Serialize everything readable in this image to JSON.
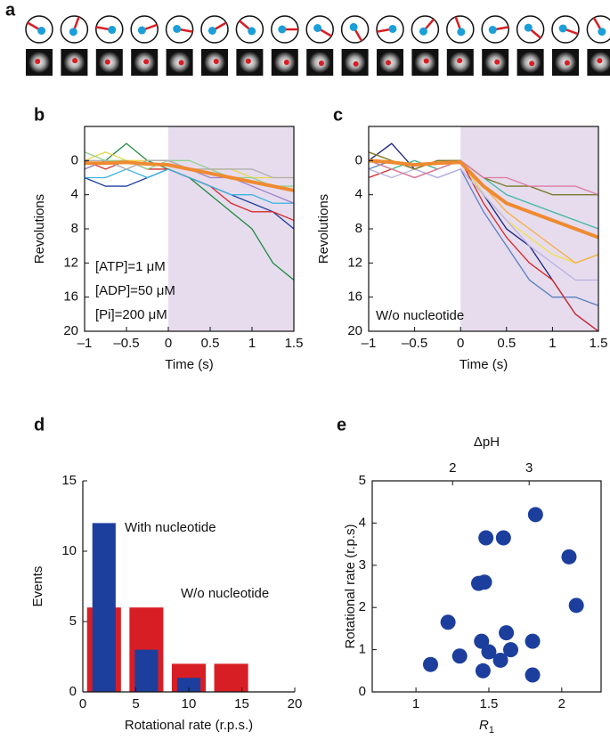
{
  "panel_labels": [
    "a",
    "b",
    "c",
    "d",
    "e"
  ],
  "chart_data": [
    {
      "type": "line",
      "xlabel": "Time (s)",
      "ylabel": "Revolutions",
      "x": [
        -1,
        -0.75,
        -0.5,
        -0.25,
        0,
        0.25,
        0.5,
        0.75,
        1,
        1.25,
        1.5
      ],
      "xlim": [
        -1,
        1.5
      ],
      "ylim": [
        -4,
        20
      ],
      "y_inverted": true,
      "xticks": [
        {
          "value": -1,
          "label": "–1"
        },
        {
          "value": -0.5,
          "label": "–0.5"
        },
        0,
        0.5,
        1,
        1.5
      ],
      "yticks": [
        0,
        4,
        8,
        12,
        16,
        20
      ],
      "shade": [
        0,
        1.5
      ],
      "shade_color": "#e6dcee",
      "annotations": [
        "[ATP]=1 μM",
        "[ADP]=50 μM",
        "[Pi]=200 μM"
      ],
      "series": [
        {
          "color": "#1f3f9f",
          "values": [
            2,
            3,
            3,
            2,
            1,
            2,
            3,
            4,
            5,
            6,
            8
          ]
        },
        {
          "color": "#1e8a3c",
          "values": [
            1,
            0,
            -2,
            0,
            1,
            2,
            4,
            6,
            8,
            12,
            14
          ]
        },
        {
          "color": "#d62a2a",
          "values": [
            0,
            1,
            0,
            1,
            1,
            2,
            3,
            5,
            6,
            6,
            7
          ]
        },
        {
          "color": "#3bb3e0",
          "values": [
            2,
            2,
            1,
            2,
            1,
            2,
            3,
            4,
            4,
            5,
            5
          ]
        },
        {
          "color": "#e6d84a",
          "values": [
            0,
            -1,
            0,
            0,
            0,
            1,
            1,
            1,
            2,
            2,
            2
          ]
        },
        {
          "color": "#9c7fc8",
          "values": [
            1,
            0,
            1,
            0,
            0,
            1,
            2,
            2,
            3,
            4,
            5
          ]
        },
        {
          "color": "#8fd18f",
          "values": [
            -1,
            0,
            0,
            1,
            0,
            0,
            1,
            2,
            2,
            3,
            3
          ]
        },
        {
          "color": "#b0b0b0",
          "values": [
            0,
            0,
            1,
            0,
            0,
            1,
            1,
            1,
            1,
            2,
            2
          ]
        },
        {
          "color": "#f08a30",
          "width": 4,
          "values": [
            0.3,
            0.3,
            0.2,
            0.4,
            0.5,
            1,
            1.5,
            2,
            2.5,
            3,
            3.5
          ]
        }
      ]
    },
    {
      "type": "line",
      "xlabel": "Time (s)",
      "ylabel": "Revolutions",
      "x": [
        -1,
        -0.75,
        -0.5,
        -0.25,
        0,
        0.25,
        0.5,
        0.75,
        1,
        1.25,
        1.5
      ],
      "xlim": [
        -1,
        1.5
      ],
      "ylim": [
        -4,
        20
      ],
      "y_inverted": true,
      "xticks": [
        {
          "value": -1,
          "label": "–1"
        },
        {
          "value": -0.5,
          "label": "–0.5"
        },
        0,
        0.5,
        1,
        1.5
      ],
      "yticks": [
        0,
        4,
        8,
        12,
        16,
        20
      ],
      "shade": [
        0,
        1.5
      ],
      "shade_color": "#e6dcee",
      "annotations": [
        "W/o nucleotide"
      ],
      "series": [
        {
          "color": "#1a237e",
          "values": [
            0,
            -2,
            1,
            0,
            0,
            4,
            8,
            10,
            14,
            18,
            20
          ]
        },
        {
          "color": "#5a7fc0",
          "values": [
            1,
            0,
            1,
            2,
            1,
            6,
            10,
            14,
            16,
            16,
            17
          ]
        },
        {
          "color": "#d62a2a",
          "values": [
            2,
            1,
            2,
            1,
            0,
            5,
            9,
            12,
            14,
            18,
            20
          ]
        },
        {
          "color": "#f2e04a",
          "values": [
            0,
            1,
            0,
            1,
            0,
            4,
            7,
            9,
            11,
            12,
            11
          ]
        },
        {
          "color": "#f5b041",
          "values": [
            -1,
            0,
            1,
            0,
            0,
            3,
            6,
            8,
            10,
            12,
            11
          ]
        },
        {
          "color": "#b9b3e0",
          "values": [
            1,
            2,
            1,
            2,
            1,
            4,
            7,
            10,
            12,
            14,
            14
          ]
        },
        {
          "color": "#3fb8a0",
          "values": [
            0,
            1,
            0,
            1,
            0,
            2,
            4,
            5,
            6,
            7,
            8
          ]
        },
        {
          "color": "#7a7a2a",
          "values": [
            -1,
            0,
            1,
            0,
            0,
            2,
            3,
            3,
            4,
            4,
            4
          ]
        },
        {
          "color": "#e07aa0",
          "values": [
            0,
            1,
            2,
            1,
            0,
            2,
            2,
            3,
            3,
            3,
            4
          ]
        },
        {
          "color": "#f08a30",
          "width": 4,
          "values": [
            0,
            0.2,
            0.5,
            0.3,
            0.2,
            3,
            5,
            6,
            7,
            8,
            9
          ]
        }
      ]
    },
    {
      "type": "bar",
      "xlabel": "Rotational rate (r.p.s.)",
      "ylabel": "Events",
      "x": [
        2,
        6,
        10,
        14
      ],
      "xlim": [
        0,
        20
      ],
      "ylim": [
        0,
        15
      ],
      "xticks": [
        0,
        5,
        10,
        15,
        20
      ],
      "yticks": [
        0,
        5,
        10,
        15
      ],
      "series": [
        {
          "name": "W/o nucleotide",
          "color": "#d81e25",
          "values": [
            6,
            6,
            2,
            2
          ]
        },
        {
          "name": "With nucleotide",
          "color": "#1c3f9e",
          "values": [
            12,
            3,
            1,
            null
          ]
        }
      ]
    },
    {
      "type": "scatter",
      "xlabel": "R",
      "xlabel_sub": "1",
      "ylabel": "Rotational rate (r.p.s)",
      "x2label": "ΔpH",
      "xlim": [
        0.7,
        2.27
      ],
      "ylim": [
        0,
        5
      ],
      "x2lim": [
        0.95,
        3.94
      ],
      "xticks": [
        1,
        1.5,
        2
      ],
      "yticks": [
        0,
        1,
        2,
        3,
        4,
        5
      ],
      "x2ticks": [
        2,
        3
      ],
      "color": "#1c3f9e",
      "x": [
        1.1,
        1.22,
        1.3,
        1.43,
        1.45,
        1.46,
        1.47,
        1.48,
        1.5,
        1.58,
        1.6,
        1.62,
        1.65,
        1.8,
        1.8,
        1.82,
        2.05,
        2.1
      ],
      "values": [
        0.65,
        1.65,
        0.85,
        2.57,
        1.2,
        0.5,
        2.6,
        3.65,
        0.95,
        0.75,
        3.65,
        1.4,
        1.0,
        1.2,
        0.4,
        4.2,
        3.2,
        2.05
      ]
    }
  ]
}
